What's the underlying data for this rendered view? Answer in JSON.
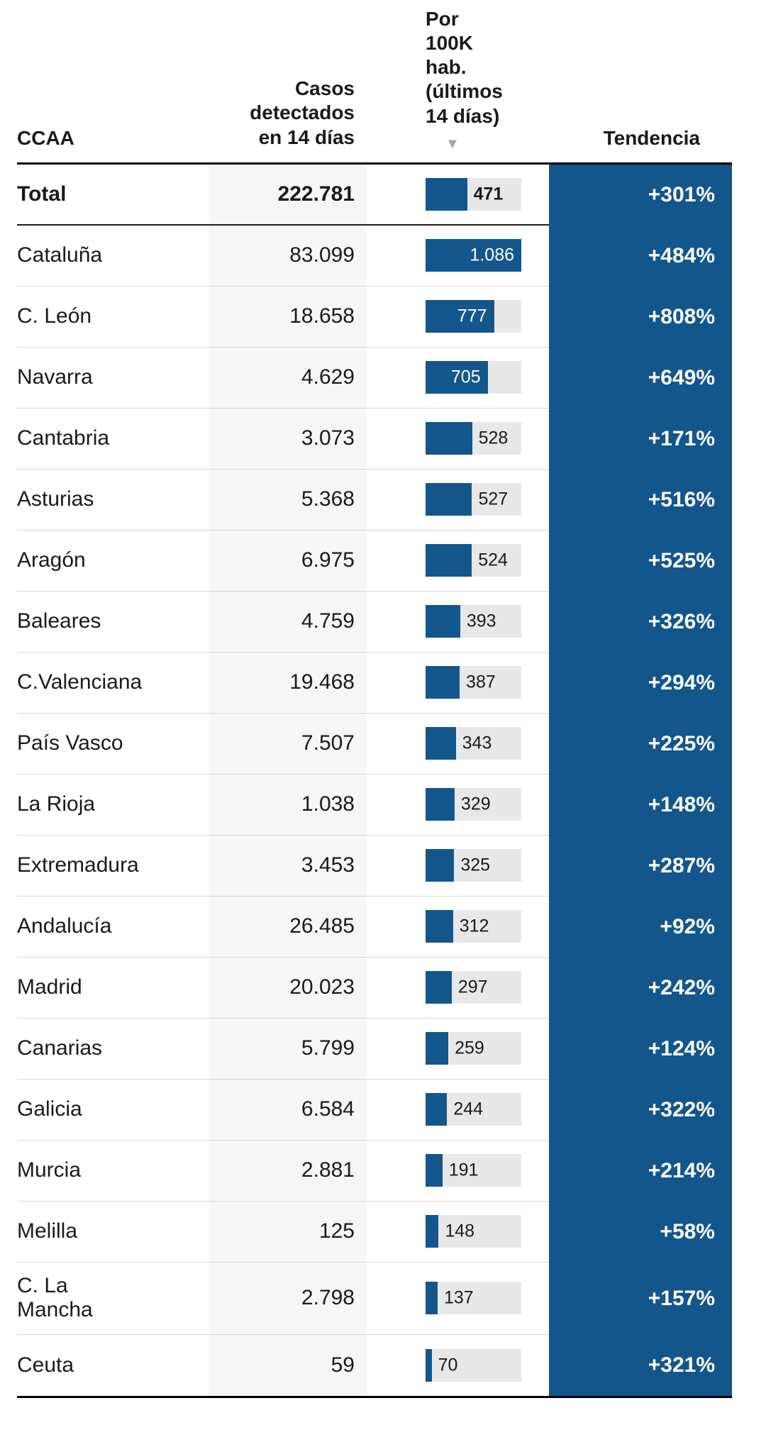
{
  "table": {
    "headers": {
      "region": "CCAA",
      "cases": "Casos\ndetectados\nen 14 días",
      "per100k": "Por\n100K\nhab.\n(últimos\n14 días)",
      "trend": "Tendencia"
    },
    "sort_icon": "▼",
    "rows": [
      {
        "region": "Total",
        "cases": "222.781",
        "per100k": 471,
        "per100k_label": "471",
        "trend": "+301%",
        "total": true
      },
      {
        "region": "Cataluña",
        "cases": "83.099",
        "per100k": 1086,
        "per100k_label": "1.086",
        "trend": "+484%"
      },
      {
        "region": "C. León",
        "cases": "18.658",
        "per100k": 777,
        "per100k_label": "777",
        "trend": "+808%"
      },
      {
        "region": "Navarra",
        "cases": "4.629",
        "per100k": 705,
        "per100k_label": "705",
        "trend": "+649%"
      },
      {
        "region": "Cantabria",
        "cases": "3.073",
        "per100k": 528,
        "per100k_label": "528",
        "trend": "+171%"
      },
      {
        "region": "Asturias",
        "cases": "5.368",
        "per100k": 527,
        "per100k_label": "527",
        "trend": "+516%"
      },
      {
        "region": "Aragón",
        "cases": "6.975",
        "per100k": 524,
        "per100k_label": "524",
        "trend": "+525%"
      },
      {
        "region": "Baleares",
        "cases": "4.759",
        "per100k": 393,
        "per100k_label": "393",
        "trend": "+326%"
      },
      {
        "region": "C.Valenciana",
        "cases": "19.468",
        "per100k": 387,
        "per100k_label": "387",
        "trend": "+294%"
      },
      {
        "region": "País Vasco",
        "cases": "7.507",
        "per100k": 343,
        "per100k_label": "343",
        "trend": "+225%"
      },
      {
        "region": "La Rioja",
        "cases": "1.038",
        "per100k": 329,
        "per100k_label": "329",
        "trend": "+148%"
      },
      {
        "region": "Extremadura",
        "cases": "3.453",
        "per100k": 325,
        "per100k_label": "325",
        "trend": "+287%"
      },
      {
        "region": "Andalucía",
        "cases": "26.485",
        "per100k": 312,
        "per100k_label": "312",
        "trend": "+92%"
      },
      {
        "region": "Madrid",
        "cases": "20.023",
        "per100k": 297,
        "per100k_label": "297",
        "trend": "+242%"
      },
      {
        "region": "Canarias",
        "cases": "5.799",
        "per100k": 259,
        "per100k_label": "259",
        "trend": "+124%"
      },
      {
        "region": "Galicia",
        "cases": "6.584",
        "per100k": 244,
        "per100k_label": "244",
        "trend": "+322%"
      },
      {
        "region": "Murcia",
        "cases": "2.881",
        "per100k": 191,
        "per100k_label": "191",
        "trend": "+214%"
      },
      {
        "region": "Melilla",
        "cases": "125",
        "per100k": 148,
        "per100k_label": "148",
        "trend": "+58%"
      },
      {
        "region": "C. La\nMancha",
        "cases": "2.798",
        "per100k": 137,
        "per100k_label": "137",
        "trend": "+157%"
      },
      {
        "region": "Ceuta",
        "cases": "59",
        "per100k": 70,
        "per100k_label": "70",
        "trend": "+321%"
      }
    ]
  },
  "colors": {
    "bar_blue": "#13568c",
    "trend_column_bg": "#13568c",
    "bar_track_gray": "#e8e8e8",
    "cases_column_bg": "#f6f6f6",
    "trend_text": "#ffffff"
  },
  "chart_data": {
    "type": "table",
    "title": "",
    "columns": [
      "CCAA",
      "Casos detectados en 14 días",
      "Por 100K hab. (últimos 14 días)",
      "Tendencia"
    ],
    "sorted_by": "Por 100K hab. (últimos 14 días)",
    "sort_order": "desc",
    "bar_column": "Por 100K hab. (últimos 14 días)",
    "bar_xlim": [
      0,
      1086
    ],
    "label_inside_min": 600,
    "rows": [
      {
        "ccaa": "Total",
        "casos_14_dias": 222781,
        "por_100k_hab": 471,
        "tendencia": "+301%"
      },
      {
        "ccaa": "Cataluña",
        "casos_14_dias": 83099,
        "por_100k_hab": 1086,
        "tendencia": "+484%"
      },
      {
        "ccaa": "C. León",
        "casos_14_dias": 18658,
        "por_100k_hab": 777,
        "tendencia": "+808%"
      },
      {
        "ccaa": "Navarra",
        "casos_14_dias": 4629,
        "por_100k_hab": 705,
        "tendencia": "+649%"
      },
      {
        "ccaa": "Cantabria",
        "casos_14_dias": 3073,
        "por_100k_hab": 528,
        "tendencia": "+171%"
      },
      {
        "ccaa": "Asturias",
        "casos_14_dias": 5368,
        "por_100k_hab": 527,
        "tendencia": "+516%"
      },
      {
        "ccaa": "Aragón",
        "casos_14_dias": 6975,
        "por_100k_hab": 524,
        "tendencia": "+525%"
      },
      {
        "ccaa": "Baleares",
        "casos_14_dias": 4759,
        "por_100k_hab": 393,
        "tendencia": "+326%"
      },
      {
        "ccaa": "C.Valenciana",
        "casos_14_dias": 19468,
        "por_100k_hab": 387,
        "tendencia": "+294%"
      },
      {
        "ccaa": "País Vasco",
        "casos_14_dias": 7507,
        "por_100k_hab": 343,
        "tendencia": "+225%"
      },
      {
        "ccaa": "La Rioja",
        "casos_14_dias": 1038,
        "por_100k_hab": 329,
        "tendencia": "+148%"
      },
      {
        "ccaa": "Extremadura",
        "casos_14_dias": 3453,
        "por_100k_hab": 325,
        "tendencia": "+287%"
      },
      {
        "ccaa": "Andalucía",
        "casos_14_dias": 26485,
        "por_100k_hab": 312,
        "tendencia": "+92%"
      },
      {
        "ccaa": "Madrid",
        "casos_14_dias": 20023,
        "por_100k_hab": 297,
        "tendencia": "+242%"
      },
      {
        "ccaa": "Canarias",
        "casos_14_dias": 5799,
        "por_100k_hab": 259,
        "tendencia": "+124%"
      },
      {
        "ccaa": "Galicia",
        "casos_14_dias": 6584,
        "por_100k_hab": 244,
        "tendencia": "+322%"
      },
      {
        "ccaa": "Murcia",
        "casos_14_dias": 2881,
        "por_100k_hab": 191,
        "tendencia": "+214%"
      },
      {
        "ccaa": "Melilla",
        "casos_14_dias": 125,
        "por_100k_hab": 148,
        "tendencia": "+58%"
      },
      {
        "ccaa": "C. La Mancha",
        "casos_14_dias": 2798,
        "por_100k_hab": 137,
        "tendencia": "+157%"
      },
      {
        "ccaa": "Ceuta",
        "casos_14_dias": 59,
        "por_100k_hab": 70,
        "tendencia": "+321%"
      }
    ]
  }
}
